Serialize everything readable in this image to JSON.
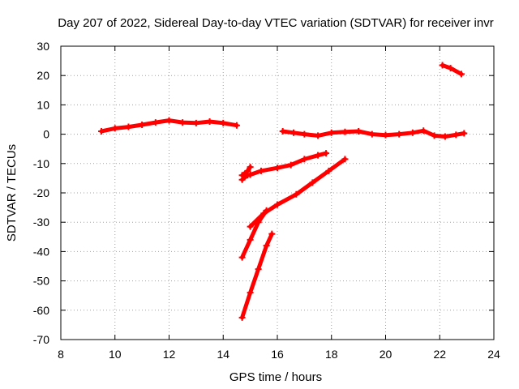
{
  "chart_data": {
    "type": "scatter",
    "title": "Day 207 of 2022, Sidereal Day-to-day VTEC variation (SDTVAR) for receiver invr",
    "xlabel": "GPS time / hours",
    "ylabel": "SDTVAR / TECUs",
    "xlim": [
      8,
      24
    ],
    "ylim": [
      -70,
      30
    ],
    "xticks": [
      "8",
      "10",
      "12",
      "14",
      "16",
      "18",
      "20",
      "22",
      "24"
    ],
    "yticks": [
      "-70",
      "-60",
      "-50",
      "-40",
      "-30",
      "-20",
      "-10",
      "0",
      "10",
      "20",
      "30"
    ],
    "grid": true,
    "legend": "none",
    "color": "#ff0000",
    "series": [
      {
        "x": [
          9.5,
          10.0,
          10.5,
          11.0,
          11.5,
          12.0,
          12.5,
          13.0,
          13.5,
          14.0,
          14.5
        ],
        "y": [
          1.0,
          2.0,
          2.5,
          3.2,
          4.0,
          4.7,
          4.0,
          3.8,
          4.3,
          3.8,
          3.0
        ]
      },
      {
        "x": [
          14.7,
          14.9,
          15.0,
          15.4,
          16.0,
          16.5,
          17.0,
          17.5,
          17.8
        ],
        "y": [
          -15.5,
          -14.0,
          -13.8,
          -12.5,
          -11.5,
          -10.5,
          -8.5,
          -7.2,
          -6.5
        ]
      },
      {
        "x": [
          14.7,
          14.9,
          15.0
        ],
        "y": [
          -14.0,
          -12.5,
          -11.2
        ]
      },
      {
        "x": [
          15.0,
          15.5,
          16.0,
          16.7,
          17.3,
          17.9,
          18.5
        ],
        "y": [
          -31.5,
          -27.0,
          -24.0,
          -20.5,
          -16.5,
          -12.5,
          -8.5
        ]
      },
      {
        "x": [
          14.7,
          15.0,
          15.3,
          15.6
        ],
        "y": [
          -42.0,
          -36.0,
          -30.0,
          -26.0
        ]
      },
      {
        "x": [
          14.7,
          15.0,
          15.3,
          15.6,
          15.8
        ],
        "y": [
          -62.5,
          -54.0,
          -46.0,
          -38.0,
          -34.0
        ]
      },
      {
        "x": [
          16.2,
          16.6,
          17.0,
          17.5,
          18.0,
          18.5,
          19.0,
          19.5,
          20.0,
          20.5,
          21.0,
          21.4,
          21.8,
          22.2,
          22.6,
          22.9
        ],
        "y": [
          1.0,
          0.5,
          0.0,
          -0.5,
          0.5,
          0.8,
          1.0,
          0.0,
          -0.3,
          0.0,
          0.5,
          1.2,
          -0.5,
          -0.8,
          -0.2,
          0.3
        ]
      },
      {
        "x": [
          22.1,
          22.4,
          22.8
        ],
        "y": [
          23.5,
          22.5,
          20.5
        ]
      }
    ]
  }
}
